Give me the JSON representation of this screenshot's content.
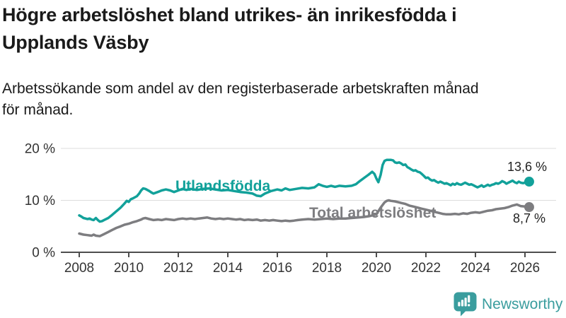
{
  "header": {
    "title": "Högre arbetslöshet bland utrikes- än inrikesfödda i\nUpplands Väsby",
    "subtitle": "Arbetssökande som andel av den registerbaserade arbetskraften månad\nför månad."
  },
  "footer": {
    "brand": "Newsworthy",
    "brand_color": "#3a9d9e"
  },
  "chart_data": {
    "type": "line",
    "title": "Arbetssökande som andel av den registerbaserade arbetskraften månad för månad",
    "unit": "%",
    "grid": "horizontal",
    "legend_position": "inline-labels",
    "xlim": [
      2007.3,
      2027.3
    ],
    "ylim": [
      0,
      21
    ],
    "yticks": [
      {
        "value": 0,
        "label": "0 %"
      },
      {
        "value": 10,
        "label": "10 %"
      },
      {
        "value": 20,
        "label": "20 %"
      }
    ],
    "xticks": [
      2008,
      2010,
      2012,
      2014,
      2016,
      2018,
      2020,
      2022,
      2024,
      2026
    ],
    "axis_color": "#4d4d4d",
    "gridline_color": "#dcdcdc",
    "tick_label_color": "#333333",
    "series": [
      {
        "name": "Utlandsfödda",
        "color": "#12a19a",
        "end_label": "13,6 %",
        "last_value": 13.6,
        "points": [
          [
            2008.0,
            7.1
          ],
          [
            2008.08,
            6.9
          ],
          [
            2008.17,
            6.6
          ],
          [
            2008.25,
            6.5
          ],
          [
            2008.33,
            6.4
          ],
          [
            2008.42,
            6.5
          ],
          [
            2008.5,
            6.3
          ],
          [
            2008.58,
            6.2
          ],
          [
            2008.67,
            6.6
          ],
          [
            2008.75,
            6.2
          ],
          [
            2008.83,
            5.9
          ],
          [
            2008.92,
            6.0
          ],
          [
            2009.0,
            6.2
          ],
          [
            2009.17,
            6.6
          ],
          [
            2009.33,
            7.2
          ],
          [
            2009.5,
            7.9
          ],
          [
            2009.67,
            8.6
          ],
          [
            2009.83,
            9.4
          ],
          [
            2009.92,
            9.9
          ],
          [
            2010.0,
            9.7
          ],
          [
            2010.08,
            10.2
          ],
          [
            2010.17,
            10.4
          ],
          [
            2010.33,
            10.8
          ],
          [
            2010.42,
            11.3
          ],
          [
            2010.5,
            11.9
          ],
          [
            2010.58,
            12.3
          ],
          [
            2010.67,
            12.2
          ],
          [
            2010.83,
            11.8
          ],
          [
            2010.92,
            11.5
          ],
          [
            2011.0,
            11.3
          ],
          [
            2011.17,
            11.6
          ],
          [
            2011.33,
            11.9
          ],
          [
            2011.5,
            12.1
          ],
          [
            2011.67,
            11.9
          ],
          [
            2011.83,
            11.6
          ],
          [
            2012.0,
            11.9
          ],
          [
            2012.17,
            12.2
          ],
          [
            2012.33,
            12.0
          ],
          [
            2012.5,
            12.2
          ],
          [
            2012.75,
            12.0
          ],
          [
            2013.0,
            12.2
          ],
          [
            2013.25,
            12.3
          ],
          [
            2013.5,
            12.1
          ],
          [
            2013.75,
            11.9
          ],
          [
            2014.0,
            12.0
          ],
          [
            2014.25,
            11.8
          ],
          [
            2014.5,
            11.6
          ],
          [
            2014.75,
            11.5
          ],
          [
            2015.0,
            11.3
          ],
          [
            2015.17,
            10.9
          ],
          [
            2015.33,
            10.8
          ],
          [
            2015.5,
            11.3
          ],
          [
            2015.75,
            11.8
          ],
          [
            2016.0,
            12.1
          ],
          [
            2016.17,
            11.9
          ],
          [
            2016.33,
            12.3
          ],
          [
            2016.5,
            12.0
          ],
          [
            2016.75,
            12.2
          ],
          [
            2017.0,
            12.4
          ],
          [
            2017.25,
            12.3
          ],
          [
            2017.5,
            12.5
          ],
          [
            2017.67,
            13.1
          ],
          [
            2017.83,
            12.8
          ],
          [
            2018.0,
            12.6
          ],
          [
            2018.17,
            12.8
          ],
          [
            2018.33,
            12.6
          ],
          [
            2018.5,
            12.8
          ],
          [
            2018.75,
            12.7
          ],
          [
            2019.0,
            12.8
          ],
          [
            2019.17,
            13.1
          ],
          [
            2019.33,
            13.7
          ],
          [
            2019.5,
            14.3
          ],
          [
            2019.67,
            14.9
          ],
          [
            2019.83,
            15.5
          ],
          [
            2019.92,
            15.1
          ],
          [
            2020.0,
            14.2
          ],
          [
            2020.08,
            13.5
          ],
          [
            2020.17,
            14.9
          ],
          [
            2020.25,
            16.8
          ],
          [
            2020.33,
            17.6
          ],
          [
            2020.42,
            17.8
          ],
          [
            2020.58,
            17.8
          ],
          [
            2020.67,
            17.7
          ],
          [
            2020.75,
            17.3
          ],
          [
            2020.83,
            17.2
          ],
          [
            2020.92,
            17.3
          ],
          [
            2021.0,
            17.1
          ],
          [
            2021.08,
            16.8
          ],
          [
            2021.17,
            16.9
          ],
          [
            2021.25,
            16.4
          ],
          [
            2021.33,
            16.2
          ],
          [
            2021.42,
            15.9
          ],
          [
            2021.5,
            15.7
          ],
          [
            2021.58,
            15.8
          ],
          [
            2021.67,
            15.5
          ],
          [
            2021.75,
            15.4
          ],
          [
            2021.83,
            15.1
          ],
          [
            2021.92,
            14.7
          ],
          [
            2022.0,
            14.3
          ],
          [
            2022.08,
            14.4
          ],
          [
            2022.17,
            14.0
          ],
          [
            2022.25,
            13.8
          ],
          [
            2022.33,
            13.9
          ],
          [
            2022.42,
            13.6
          ],
          [
            2022.5,
            13.4
          ],
          [
            2022.58,
            13.6
          ],
          [
            2022.67,
            13.4
          ],
          [
            2022.75,
            13.2
          ],
          [
            2022.83,
            13.3
          ],
          [
            2022.92,
            13.1
          ],
          [
            2023.0,
            12.9
          ],
          [
            2023.08,
            13.2
          ],
          [
            2023.17,
            13.0
          ],
          [
            2023.25,
            13.3
          ],
          [
            2023.33,
            13.1
          ],
          [
            2023.42,
            13.0
          ],
          [
            2023.5,
            13.2
          ],
          [
            2023.58,
            13.4
          ],
          [
            2023.67,
            13.2
          ],
          [
            2023.75,
            13.0
          ],
          [
            2023.83,
            13.1
          ],
          [
            2023.92,
            12.9
          ],
          [
            2024.0,
            12.7
          ],
          [
            2024.08,
            12.5
          ],
          [
            2024.17,
            12.7
          ],
          [
            2024.25,
            12.9
          ],
          [
            2024.33,
            12.6
          ],
          [
            2024.42,
            12.8
          ],
          [
            2024.5,
            13.0
          ],
          [
            2024.58,
            12.8
          ],
          [
            2024.67,
            13.0
          ],
          [
            2024.75,
            13.1
          ],
          [
            2024.83,
            13.3
          ],
          [
            2024.92,
            13.2
          ],
          [
            2025.0,
            13.4
          ],
          [
            2025.08,
            13.7
          ],
          [
            2025.17,
            13.5
          ],
          [
            2025.25,
            13.2
          ],
          [
            2025.33,
            13.4
          ],
          [
            2025.42,
            13.6
          ],
          [
            2025.5,
            13.8
          ],
          [
            2025.58,
            13.5
          ],
          [
            2025.67,
            13.3
          ],
          [
            2025.75,
            13.6
          ],
          [
            2025.83,
            13.4
          ],
          [
            2025.92,
            13.3
          ],
          [
            2026.0,
            13.4
          ],
          [
            2026.17,
            13.6
          ]
        ]
      },
      {
        "name": "Total arbetslöshet",
        "color": "#7d7d80",
        "end_label": "8,7 %",
        "last_value": 8.7,
        "points": [
          [
            2008.0,
            3.6
          ],
          [
            2008.17,
            3.4
          ],
          [
            2008.33,
            3.3
          ],
          [
            2008.5,
            3.2
          ],
          [
            2008.58,
            3.4
          ],
          [
            2008.67,
            3.2
          ],
          [
            2008.83,
            3.1
          ],
          [
            2008.92,
            3.3
          ],
          [
            2009.0,
            3.5
          ],
          [
            2009.17,
            3.9
          ],
          [
            2009.33,
            4.3
          ],
          [
            2009.5,
            4.7
          ],
          [
            2009.67,
            5.0
          ],
          [
            2009.83,
            5.3
          ],
          [
            2010.0,
            5.5
          ],
          [
            2010.17,
            5.8
          ],
          [
            2010.33,
            6.0
          ],
          [
            2010.5,
            6.3
          ],
          [
            2010.58,
            6.5
          ],
          [
            2010.67,
            6.6
          ],
          [
            2010.83,
            6.4
          ],
          [
            2011.0,
            6.2
          ],
          [
            2011.17,
            6.3
          ],
          [
            2011.33,
            6.2
          ],
          [
            2011.5,
            6.4
          ],
          [
            2011.67,
            6.3
          ],
          [
            2011.83,
            6.2
          ],
          [
            2012.0,
            6.4
          ],
          [
            2012.17,
            6.5
          ],
          [
            2012.33,
            6.4
          ],
          [
            2012.5,
            6.5
          ],
          [
            2012.67,
            6.4
          ],
          [
            2012.83,
            6.5
          ],
          [
            2013.0,
            6.6
          ],
          [
            2013.17,
            6.7
          ],
          [
            2013.33,
            6.5
          ],
          [
            2013.5,
            6.4
          ],
          [
            2013.67,
            6.5
          ],
          [
            2013.83,
            6.4
          ],
          [
            2014.0,
            6.5
          ],
          [
            2014.17,
            6.4
          ],
          [
            2014.33,
            6.3
          ],
          [
            2014.5,
            6.4
          ],
          [
            2014.67,
            6.2
          ],
          [
            2014.83,
            6.3
          ],
          [
            2015.0,
            6.2
          ],
          [
            2015.17,
            6.3
          ],
          [
            2015.33,
            6.1
          ],
          [
            2015.5,
            6.2
          ],
          [
            2015.67,
            6.1
          ],
          [
            2015.83,
            6.2
          ],
          [
            2016.0,
            6.1
          ],
          [
            2016.17,
            6.0
          ],
          [
            2016.33,
            6.1
          ],
          [
            2016.5,
            6.0
          ],
          [
            2016.67,
            6.1
          ],
          [
            2016.83,
            6.2
          ],
          [
            2017.0,
            6.3
          ],
          [
            2017.25,
            6.4
          ],
          [
            2017.5,
            6.3
          ],
          [
            2017.75,
            6.4
          ],
          [
            2018.0,
            6.5
          ],
          [
            2018.25,
            6.4
          ],
          [
            2018.5,
            6.5
          ],
          [
            2018.75,
            6.5
          ],
          [
            2019.0,
            6.6
          ],
          [
            2019.25,
            6.7
          ],
          [
            2019.5,
            6.8
          ],
          [
            2019.75,
            7.0
          ],
          [
            2020.0,
            7.3
          ],
          [
            2020.17,
            8.6
          ],
          [
            2020.33,
            9.6
          ],
          [
            2020.42,
            9.9
          ],
          [
            2020.5,
            10.0
          ],
          [
            2020.58,
            9.9
          ],
          [
            2020.75,
            9.8
          ],
          [
            2020.92,
            9.6
          ],
          [
            2021.0,
            9.5
          ],
          [
            2021.17,
            9.3
          ],
          [
            2021.33,
            9.0
          ],
          [
            2021.5,
            8.8
          ],
          [
            2021.67,
            8.6
          ],
          [
            2021.83,
            8.4
          ],
          [
            2022.0,
            8.2
          ],
          [
            2022.17,
            8.0
          ],
          [
            2022.33,
            7.8
          ],
          [
            2022.5,
            7.6
          ],
          [
            2022.67,
            7.4
          ],
          [
            2022.83,
            7.3
          ],
          [
            2023.0,
            7.3
          ],
          [
            2023.17,
            7.4
          ],
          [
            2023.33,
            7.3
          ],
          [
            2023.5,
            7.5
          ],
          [
            2023.67,
            7.4
          ],
          [
            2023.83,
            7.6
          ],
          [
            2024.0,
            7.7
          ],
          [
            2024.17,
            7.6
          ],
          [
            2024.33,
            7.8
          ],
          [
            2024.5,
            8.0
          ],
          [
            2024.67,
            8.1
          ],
          [
            2024.83,
            8.3
          ],
          [
            2025.0,
            8.4
          ],
          [
            2025.17,
            8.5
          ],
          [
            2025.33,
            8.7
          ],
          [
            2025.5,
            9.0
          ],
          [
            2025.67,
            9.2
          ],
          [
            2025.83,
            8.9
          ],
          [
            2026.0,
            8.8
          ],
          [
            2026.17,
            8.7
          ]
        ]
      }
    ]
  }
}
